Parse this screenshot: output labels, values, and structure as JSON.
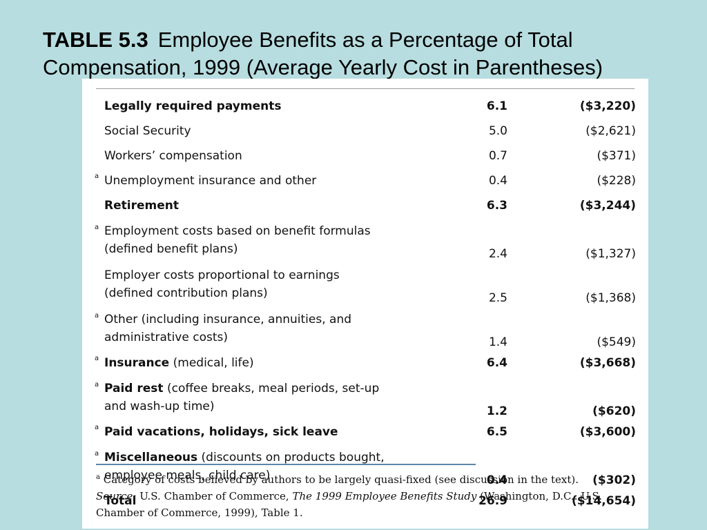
{
  "title": {
    "label": "TABLE 5.3",
    "text": "Employee Benefits as a Percentage of Total Compensation, 1999 (Average Yearly Cost in Parentheses)"
  },
  "rows": [
    {
      "mark": "",
      "label": "Legally required payments",
      "label_rest": "",
      "label2": "",
      "pct": "6.1",
      "amount": "($3,220)",
      "bold": true,
      "indent": false
    },
    {
      "mark": "",
      "label": "Social Security",
      "label_rest": "",
      "label2": "",
      "pct": "5.0",
      "amount": "($2,621)",
      "bold": false,
      "indent": true
    },
    {
      "mark": "",
      "label": "Workers’ compensation",
      "label_rest": "",
      "label2": "",
      "pct": "0.7",
      "amount": "($371)",
      "bold": false,
      "indent": true
    },
    {
      "mark": "a",
      "label": "Unemployment insurance and other",
      "label_rest": "",
      "label2": "",
      "pct": "0.4",
      "amount": "($228)",
      "bold": false,
      "indent": false
    },
    {
      "mark": "",
      "label": "Retirement",
      "label_rest": "",
      "label2": "",
      "pct": "6.3",
      "amount": "($3,244)",
      "bold": true,
      "indent": false
    },
    {
      "mark": "a",
      "label": "Employment costs based on benefit formulas",
      "label_rest": "",
      "label2": "(defined benefit plans)",
      "pct": "2.4",
      "amount": "($1,327)",
      "bold": false,
      "indent": false
    },
    {
      "mark": "",
      "label": "Employer costs proportional to earnings",
      "label_rest": "",
      "label2": "(defined contribution plans)",
      "pct": "2.5",
      "amount": "($1,368)",
      "bold": false,
      "indent": true
    },
    {
      "mark": "a",
      "label": "Other (including insurance, annuities, and",
      "label_rest": "",
      "label2": "administrative costs)",
      "pct": "1.4",
      "amount": "($549)",
      "bold": false,
      "indent": false
    },
    {
      "mark": "a",
      "label": "Insurance",
      "label_rest": " (medical, life)",
      "label2": "",
      "pct": "6.4",
      "amount": "($3,668)",
      "bold": true,
      "indent": false
    },
    {
      "mark": "a",
      "label": "Paid rest",
      "label_rest": " (coffee breaks, meal periods, set-up",
      "label2": "and wash-up time)",
      "pct": "1.2",
      "amount": "($620)",
      "bold": true,
      "indent": false
    },
    {
      "mark": "a",
      "label": "Paid vacations, holidays, sick leave",
      "label_rest": "",
      "label2": "",
      "pct": "6.5",
      "amount": "($3,600)",
      "bold": true,
      "indent": false
    },
    {
      "mark": "a",
      "label": "Miscellaneous",
      "label_rest": " (discounts on products bought,",
      "label2": "employee meals, child care)",
      "pct": "0.4",
      "amount": "($302)",
      "bold": true,
      "indent": false
    },
    {
      "mark": "",
      "label": "Total",
      "label_rest": "",
      "label2": "",
      "pct": "26.9",
      "amount": "($14,654)",
      "bold": true,
      "indent": true
    }
  ],
  "footnote": {
    "mark": "a",
    "text": "Category of costs believed by authors to be largely quasi-fixed (see discussion in the text)."
  },
  "source": {
    "label": "Source:",
    "text1": "U.S. Chamber of Commerce,",
    "title": "The 1999 Employee Benefits Study",
    "text2": "(Washington, D.C.: U.S. Chamber of Commerce, 1999), Table 1."
  },
  "colors": {
    "background": "#b7dde0",
    "sheet": "#ffffff",
    "rule": "#5b86a8"
  }
}
